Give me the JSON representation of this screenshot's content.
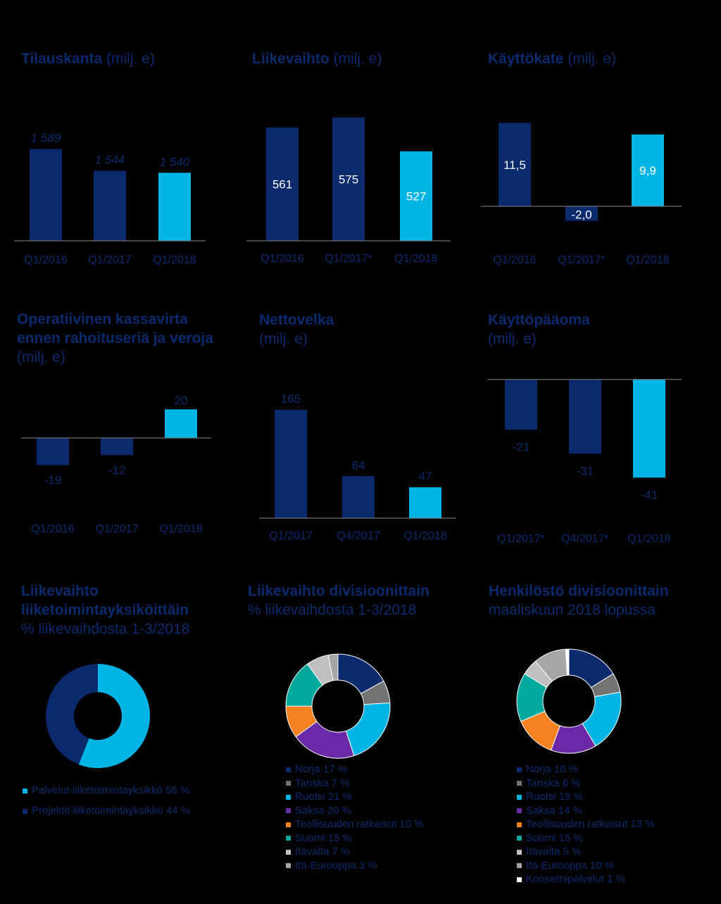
{
  "colors": {
    "dark": "#0b2a6e",
    "light": "#00b4e5",
    "label_dark": "#0b2a6e",
    "norja": "#0b2a6e",
    "tanska": "#737373",
    "ruotsi": "#00b4e5",
    "saksa": "#6a2aa8",
    "teollisuus": "#f58220",
    "suomi": "#00a99d",
    "itavalta": "#bfbfbf",
    "ita_eurooppa": "#a6a6a6",
    "konserni": "#ffffff"
  },
  "panels": {
    "tilauskanta": {
      "title": "Tilauskanta",
      "unit": "(milj. e)"
    },
    "liikevaihto": {
      "title": "Liikevaihto",
      "unit": "(milj. e)"
    },
    "kayttokate": {
      "title": "Käyttökate",
      "unit": "(milj. e)"
    },
    "kassavirta": {
      "title_line1": "Operatiivinen kassavirta",
      "title_line2": "ennen rahoituseriä ja veroja",
      "unit": "(milj. e)"
    },
    "nettovelka": {
      "title": "Nettovelka",
      "unit": "(milj. e)"
    },
    "kayttopaaoma": {
      "title": "Käyttöpääoma",
      "unit": "(milj. e)"
    },
    "lv_yksikot": {
      "title_line1": "Liikevaihto",
      "title_line2": "liiketoimintayksiköittäin",
      "subtitle": "% liikevaihdosta 1-3/2018"
    },
    "lv_divisioonat": {
      "title": "Liikevaihto divisioonittain",
      "subtitle": "% liikevaihdosta 1-3/2018"
    },
    "henkilosto": {
      "title": "Henkilöstö divisioonittain",
      "subtitle": "maaliskuun 2018 lopussa"
    }
  },
  "chart_data": [
    {
      "id": "tilauskanta",
      "type": "bar",
      "title": "Tilauskanta (milj. e)",
      "categories": [
        "Q1/2016",
        "Q1/2017",
        "Q1/2018"
      ],
      "values": [
        1589,
        1544,
        1540
      ],
      "labels": [
        "1 589",
        "1 544",
        "1 540"
      ],
      "ylim": [
        1400,
        1600
      ]
    },
    {
      "id": "liikevaihto",
      "type": "bar",
      "title": "Liikevaihto (milj. e)",
      "categories": [
        "Q1/2016",
        "Q1/2017*",
        "Q1/2018"
      ],
      "values": [
        561,
        575,
        527
      ],
      "labels": [
        "561",
        "575",
        "527"
      ],
      "ylim": [
        400,
        600
      ]
    },
    {
      "id": "kayttokate",
      "type": "bar",
      "title": "Käyttökate (milj. e)",
      "categories": [
        "Q1/2016",
        "Q1/2017*",
        "Q1/2018"
      ],
      "values": [
        11.5,
        -2.0,
        9.9
      ],
      "labels": [
        "11,5",
        "-2,0",
        "9,9"
      ],
      "ylim": [
        -2.5,
        12
      ]
    },
    {
      "id": "kassavirta",
      "type": "bar",
      "title": "Operatiivinen kassavirta ennen rahoituseriä ja veroja (milj. e)",
      "categories": [
        "Q1/2016",
        "Q1/2017",
        "Q1/2018"
      ],
      "values": [
        -19,
        -12,
        20
      ],
      "labels": [
        "-19",
        "-12",
        "20"
      ],
      "ylim": [
        -25,
        25
      ]
    },
    {
      "id": "nettovelka",
      "type": "bar",
      "title": "Nettovelka (milj. e)",
      "categories": [
        "Q1/2017",
        "Q4/2017",
        "Q1/2018"
      ],
      "values": [
        165,
        64,
        47
      ],
      "labels": [
        "165",
        "64",
        "47"
      ],
      "ylim": [
        0,
        180
      ]
    },
    {
      "id": "kayttopaaoma",
      "type": "bar",
      "title": "Käyttöpääoma (milj. e)",
      "categories": [
        "Q1/2017*",
        "Q4/2017*",
        "Q1/2018"
      ],
      "values": [
        -21,
        -31,
        -41
      ],
      "labels": [
        "-21",
        "-31",
        "-41"
      ],
      "ylim": [
        -45,
        0
      ]
    },
    {
      "id": "lv_yksikot",
      "type": "pie",
      "title": "Liikevaihto liiketoimintayksiköittäin",
      "slices": [
        {
          "label": "Palvelut-liiketoimintayksikkö 56 %",
          "value": 56,
          "color": "light"
        },
        {
          "label": "Projektit-liiketoimintayksikkö 44 %",
          "value": 44,
          "color": "dark"
        }
      ]
    },
    {
      "id": "lv_divisioonat",
      "type": "pie",
      "title": "Liikevaihto divisioonittain",
      "slices": [
        {
          "label": "Norja 17 %",
          "value": 17,
          "color": "norja"
        },
        {
          "label": "Tanska 7 %",
          "value": 7,
          "color": "tanska"
        },
        {
          "label": "Ruotsi 21 %",
          "value": 21,
          "color": "ruotsi"
        },
        {
          "label": "Saksa 20 %",
          "value": 20,
          "color": "saksa"
        },
        {
          "label": "Teollisuuden ratkaisut 10 %",
          "value": 10,
          "color": "teollisuus"
        },
        {
          "label": "Suomi 15 %",
          "value": 15,
          "color": "suomi"
        },
        {
          "label": "Itävalta 7 %",
          "value": 7,
          "color": "itavalta"
        },
        {
          "label": "Itä-Eurooppa  3 %",
          "value": 3,
          "color": "ita_eurooppa"
        }
      ]
    },
    {
      "id": "henkilosto",
      "type": "pie",
      "title": "Henkilöstö divisioonittain",
      "slices": [
        {
          "label": "Norja 16 %",
          "value": 16,
          "color": "norja"
        },
        {
          "label": "Tanska 6 %",
          "value": 6,
          "color": "tanska"
        },
        {
          "label": "Ruotsi 19 %",
          "value": 19,
          "color": "ruotsi"
        },
        {
          "label": "Saksa 14 %",
          "value": 14,
          "color": "saksa"
        },
        {
          "label": "Teollisuuden ratkaisut 13 %",
          "value": 13,
          "color": "teollisuus"
        },
        {
          "label": "Suomi 15 %",
          "value": 15,
          "color": "suomi"
        },
        {
          "label": "Itävalta 5 %",
          "value": 5,
          "color": "itavalta"
        },
        {
          "label": "Itä-Eurooppa 10 %",
          "value": 10,
          "color": "ita_eurooppa"
        },
        {
          "label": "Konsernipalvelut 1 %",
          "value": 1,
          "color": "konserni"
        }
      ]
    }
  ]
}
